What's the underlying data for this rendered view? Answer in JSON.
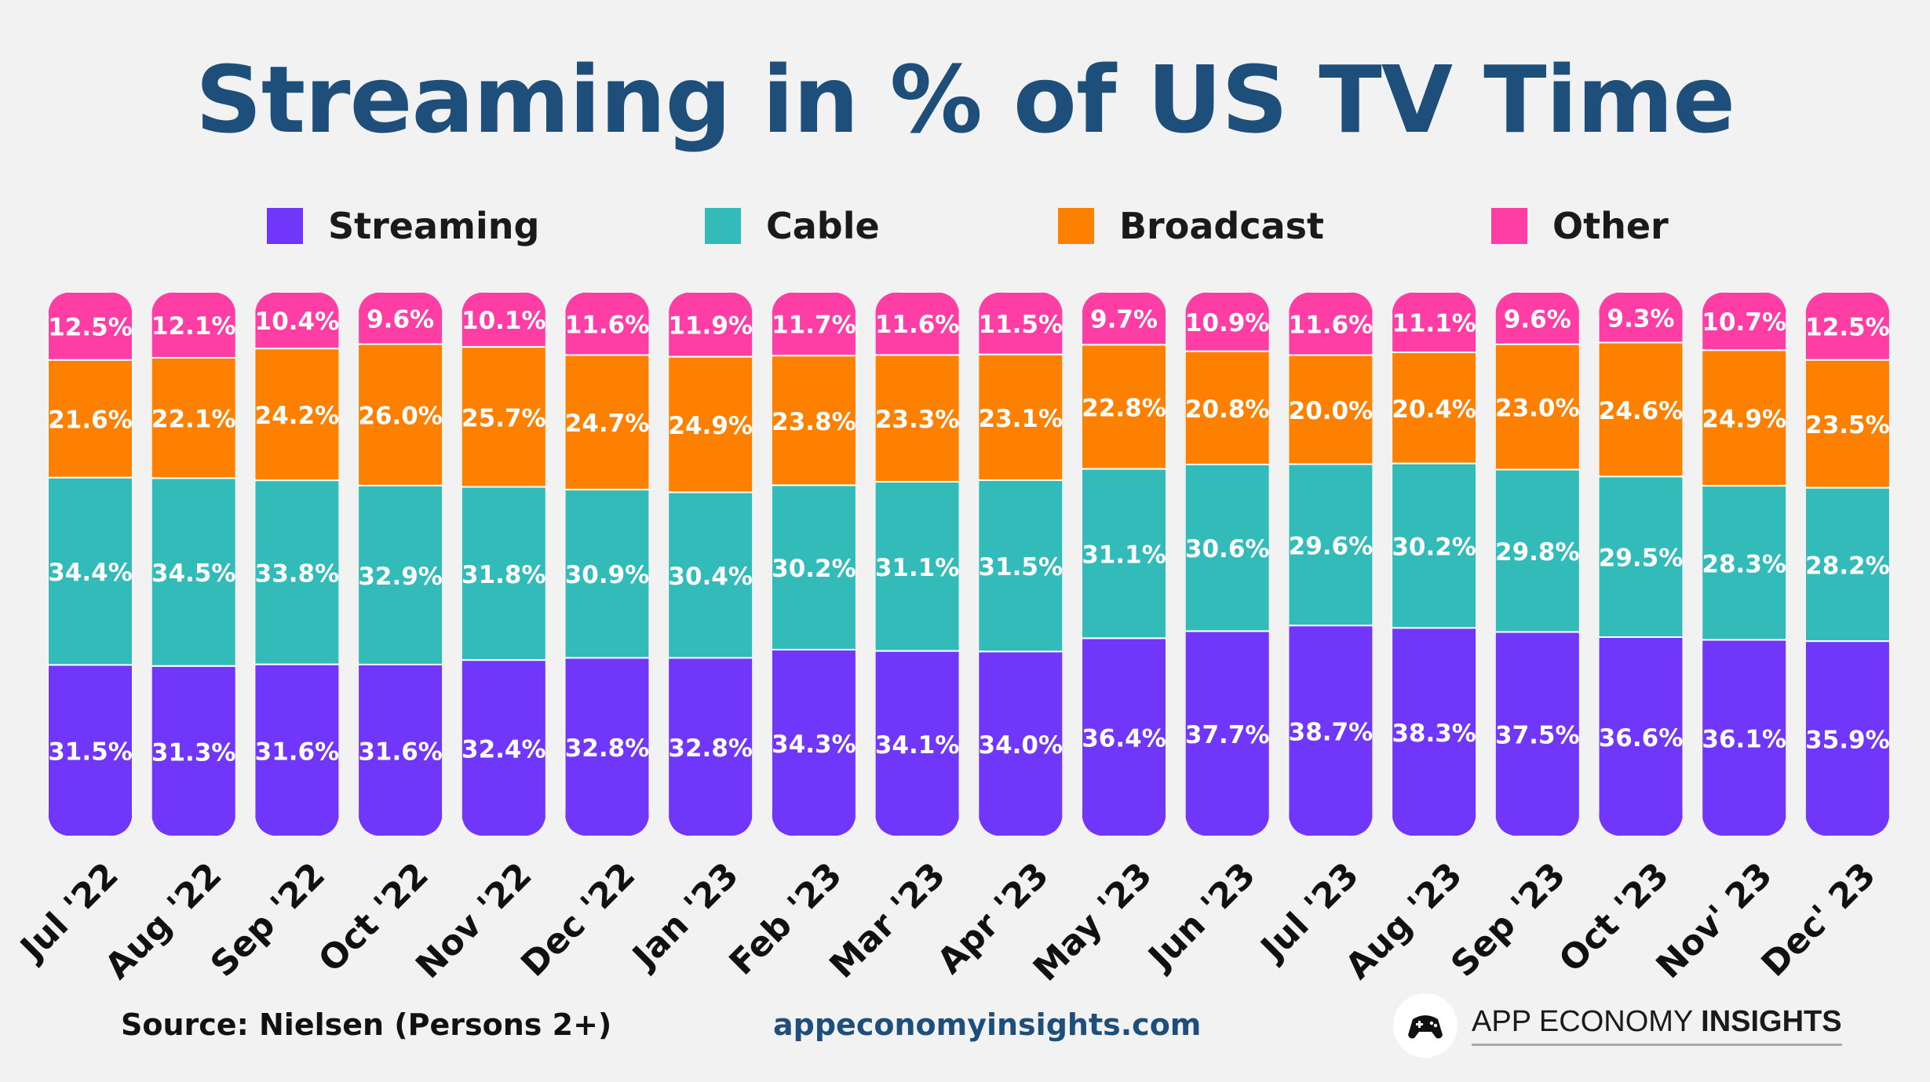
{
  "page": {
    "title": "Streaming in % of US TV Time",
    "source": "Source: Nielsen (Persons 2+)",
    "website": "appeconomyinsights.com",
    "brand_regular": "APP ECONOMY",
    "brand_bold": "INSIGHTS",
    "brand_icon": "controller-icon"
  },
  "chart_data": {
    "type": "bar",
    "stacked": true,
    "title": "Streaming in % of US TV Time",
    "xlabel": "",
    "ylabel": "",
    "ylim": [
      0,
      100
    ],
    "grid": false,
    "legend_position": "top",
    "categories": [
      "Jul '22",
      "Aug '22",
      "Sep '22",
      "Oct '22",
      "Nov '22",
      "Dec '22",
      "Jan '23",
      "Feb '23",
      "Mar '23",
      "Apr '23",
      "May '23",
      "Jun '23",
      "Jul '23",
      "Aug '23",
      "Sep '23",
      "Oct '23",
      "Nov' 23",
      "Dec' 23"
    ],
    "series": [
      {
        "name": "Streaming",
        "color": "#7036f9",
        "values": [
          31.5,
          31.3,
          31.6,
          31.6,
          32.4,
          32.8,
          32.8,
          34.3,
          34.1,
          34.0,
          36.4,
          37.7,
          38.7,
          38.3,
          37.5,
          36.6,
          36.1,
          35.9
        ],
        "labels": [
          "31.5%",
          "31.3%",
          "31.6%",
          "31.6%",
          "32.4%",
          "32.8%",
          "32.8%",
          "34.3%",
          "34.1%",
          "34.0%",
          "36.4%",
          "37.7%",
          "38.7%",
          "38.3%",
          "37.5%",
          "36.6%",
          "36.1%",
          "35.9%"
        ]
      },
      {
        "name": "Cable",
        "color": "#32bbb9",
        "values": [
          34.4,
          34.5,
          33.8,
          32.9,
          31.8,
          30.9,
          30.4,
          30.2,
          31.1,
          31.5,
          31.1,
          30.6,
          29.6,
          30.2,
          29.8,
          29.5,
          28.3,
          28.2
        ],
        "labels": [
          "34.4%",
          "34.5%",
          "33.8%",
          "32.9%",
          "31.8%",
          "30.9%",
          "30.4%",
          "30.2%",
          "31.1%",
          "31.5%",
          "31.1%",
          "30.6%",
          "29.6%",
          "30.2%",
          "29.8%",
          "29.5%",
          "28.3%",
          "28.2%"
        ]
      },
      {
        "name": "Broadcast",
        "color": "#fd8000",
        "values": [
          21.6,
          22.1,
          24.2,
          26.0,
          25.7,
          24.7,
          24.9,
          23.8,
          23.3,
          23.1,
          22.8,
          20.8,
          20.0,
          20.4,
          23.0,
          24.6,
          24.9,
          23.5
        ],
        "labels": [
          "21.6%",
          "22.1%",
          "24.2%",
          "26.0%",
          "25.7%",
          "24.7%",
          "24.9%",
          "23.8%",
          "23.3%",
          "23.1%",
          "22.8%",
          "20.8%",
          "20.0%",
          "20.4%",
          "23.0%",
          "24.6%",
          "24.9%",
          "23.5%"
        ]
      },
      {
        "name": "Other",
        "color": "#ff3ea5",
        "values": [
          12.5,
          12.1,
          10.4,
          9.6,
          10.1,
          11.6,
          11.9,
          11.7,
          11.6,
          11.5,
          9.7,
          10.9,
          11.6,
          11.1,
          9.6,
          9.3,
          10.7,
          12.5
        ],
        "labels": [
          "12.5%",
          "12.1%",
          "10.4%",
          "9.6%",
          "10.1%",
          "11.6%",
          "11.9%",
          "11.7%",
          "11.6%",
          "11.5%",
          "9.7%",
          "10.9%",
          "11.6%",
          "11.1%",
          "9.6%",
          "9.3%",
          "10.7%",
          "12.5%"
        ]
      }
    ]
  }
}
